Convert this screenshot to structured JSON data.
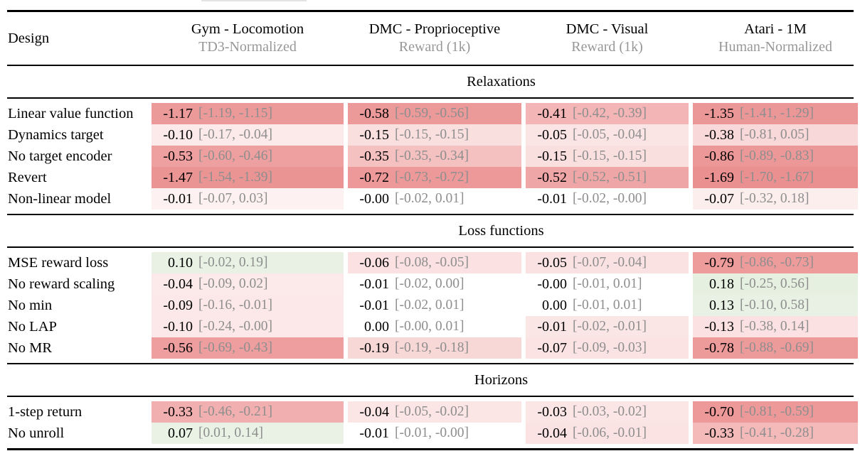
{
  "table": {
    "design_header": "Design",
    "columns": [
      {
        "title": "Gym - Locomotion",
        "subtitle": "TD3-Normalized"
      },
      {
        "title": "DMC - Proprioceptive",
        "subtitle": "Reward (1k)"
      },
      {
        "title": "DMC - Visual",
        "subtitle": "Reward (1k)"
      },
      {
        "title": "Atari - 1M",
        "subtitle": "Human-Normalized"
      }
    ],
    "sections": [
      {
        "title": "Relaxations",
        "rows": [
          {
            "design": "Linear value function",
            "cells": [
              {
                "value": "-1.17",
                "ci": "[-1.19, -1.15]",
                "bg": "#ec9999"
              },
              {
                "value": "-0.58",
                "ci": "[-0.59, -0.56]",
                "bg": "#ec9999"
              },
              {
                "value": "-0.41",
                "ci": "[-0.42, -0.39]",
                "bg": "#f3b5b5"
              },
              {
                "value": "-1.35",
                "ci": "[-1.41, -1.29]",
                "bg": "#ec9797"
              }
            ]
          },
          {
            "design": "Dynamics target",
            "cells": [
              {
                "value": "-0.10",
                "ci": "[-0.17, -0.04]",
                "bg": "#fce9e9"
              },
              {
                "value": "-0.15",
                "ci": "[-0.15, -0.15]",
                "bg": "#fadfdf"
              },
              {
                "value": "-0.05",
                "ci": "[-0.05, -0.04]",
                "bg": "#fbe4e4"
              },
              {
                "value": "-0.38",
                "ci": "[-0.81, 0.05]",
                "bg": "#f8d8d8"
              }
            ]
          },
          {
            "design": "No target encoder",
            "cells": [
              {
                "value": "-0.53",
                "ci": "[-0.60, -0.46]",
                "bg": "#ee9f9f"
              },
              {
                "value": "-0.35",
                "ci": "[-0.35, -0.34]",
                "bg": "#f5c0c0"
              },
              {
                "value": "-0.15",
                "ci": "[-0.15, -0.15]",
                "bg": "#fadfdf"
              },
              {
                "value": "-0.86",
                "ci": "[-0.89, -0.83]",
                "bg": "#ec9898"
              }
            ]
          },
          {
            "design": "Revert",
            "cells": [
              {
                "value": "-1.47",
                "ci": "[-1.54, -1.39]",
                "bg": "#eb9494"
              },
              {
                "value": "-0.72",
                "ci": "[-0.73, -0.72]",
                "bg": "#ed9999"
              },
              {
                "value": "-0.52",
                "ci": "[-0.52, -0.51]",
                "bg": "#efa6a6"
              },
              {
                "value": "-1.69",
                "ci": "[-1.70, -1.67]",
                "bg": "#ea9090"
              }
            ]
          },
          {
            "design": "Non-linear model",
            "cells": [
              {
                "value": "-0.01",
                "ci": "[-0.07, 0.03]",
                "bg": "#fdf1f1"
              },
              {
                "value": "-0.00",
                "ci": "[-0.02, 0.01]",
                "bg": "#ffffff"
              },
              {
                "value": "-0.01",
                "ci": "[-0.02, -0.00]",
                "bg": "#ffffff"
              },
              {
                "value": "-0.07",
                "ci": "[-0.32, 0.18]",
                "bg": "#fdeeee"
              }
            ]
          }
        ]
      },
      {
        "title": "Loss functions",
        "rows": [
          {
            "design": "MSE reward loss",
            "cells": [
              {
                "value": "0.10",
                "ci": "[-0.02, 0.19]",
                "bg": "#e8f1e3"
              },
              {
                "value": "-0.06",
                "ci": "[-0.08, -0.05]",
                "bg": "#fbe1e1"
              },
              {
                "value": "-0.05",
                "ci": "[-0.07, -0.04]",
                "bg": "#fbe2e2"
              },
              {
                "value": "-0.79",
                "ci": "[-0.86, -0.73]",
                "bg": "#ed9b9b"
              }
            ]
          },
          {
            "design": "No reward scaling",
            "cells": [
              {
                "value": "-0.04",
                "ci": "[-0.09, 0.02]",
                "bg": "#fceaea"
              },
              {
                "value": "-0.01",
                "ci": "[-0.02, 0.00]",
                "bg": "#ffffff"
              },
              {
                "value": "-0.00",
                "ci": "[-0.01, 0.01]",
                "bg": "#ffffff"
              },
              {
                "value": "0.18",
                "ci": "[-0.25, 0.56]",
                "bg": "#e6f0e0"
              }
            ]
          },
          {
            "design": "No min",
            "cells": [
              {
                "value": "-0.09",
                "ci": "[-0.16, -0.01]",
                "bg": "#fce8e8"
              },
              {
                "value": "-0.01",
                "ci": "[-0.02, 0.01]",
                "bg": "#ffffff"
              },
              {
                "value": "0.00",
                "ci": "[-0.01, 0.01]",
                "bg": "#ffffff"
              },
              {
                "value": "0.13",
                "ci": "[-0.10, 0.58]",
                "bg": "#e8f1e3"
              }
            ]
          },
          {
            "design": "No LAP",
            "cells": [
              {
                "value": "-0.10",
                "ci": "[-0.24, -0.00]",
                "bg": "#fce8e8"
              },
              {
                "value": "0.00",
                "ci": "[-0.00, 0.01]",
                "bg": "#ffffff"
              },
              {
                "value": "-0.01",
                "ci": "[-0.02, -0.01]",
                "bg": "#fbe6e6"
              },
              {
                "value": "-0.13",
                "ci": "[-0.38, 0.14]",
                "bg": "#fbe1e1"
              }
            ]
          },
          {
            "design": "No MR",
            "cells": [
              {
                "value": "-0.56",
                "ci": "[-0.69, -0.43]",
                "bg": "#ee9e9e"
              },
              {
                "value": "-0.19",
                "ci": "[-0.19, -0.18]",
                "bg": "#f8d7d7"
              },
              {
                "value": "-0.07",
                "ci": "[-0.09, -0.03]",
                "bg": "#fbe3e3"
              },
              {
                "value": "-0.78",
                "ci": "[-0.88, -0.69]",
                "bg": "#ed9a9a"
              }
            ]
          }
        ]
      },
      {
        "title": "Horizons",
        "rows": [
          {
            "design": "1-step return",
            "cells": [
              {
                "value": "-0.33",
                "ci": "[-0.46, -0.21]",
                "bg": "#f2afaf"
              },
              {
                "value": "-0.04",
                "ci": "[-0.05, -0.02]",
                "bg": "#fbe5e5"
              },
              {
                "value": "-0.03",
                "ci": "[-0.03, -0.02]",
                "bg": "#fbe5e5"
              },
              {
                "value": "-0.70",
                "ci": "[-0.81, -0.59]",
                "bg": "#ed9999"
              }
            ]
          },
          {
            "design": "No unroll",
            "cells": [
              {
                "value": "0.07",
                "ci": "[0.01, 0.14]",
                "bg": "#e9f2e5"
              },
              {
                "value": "-0.01",
                "ci": "[-0.01, -0.00]",
                "bg": "#ffffff"
              },
              {
                "value": "-0.04",
                "ci": "[-0.06, -0.01]",
                "bg": "#fbe3e3"
              },
              {
                "value": "-0.33",
                "ci": "[-0.41, -0.28]",
                "bg": "#f4baba"
              }
            ]
          }
        ]
      }
    ]
  },
  "colors": {
    "ci_text": "#8e8e8e",
    "subtitle_text": "#979797",
    "rule": "#000000",
    "negative_strong": "#ec9999",
    "negative_light": "#fbe3e3",
    "positive_light": "#e8f1e3"
  }
}
